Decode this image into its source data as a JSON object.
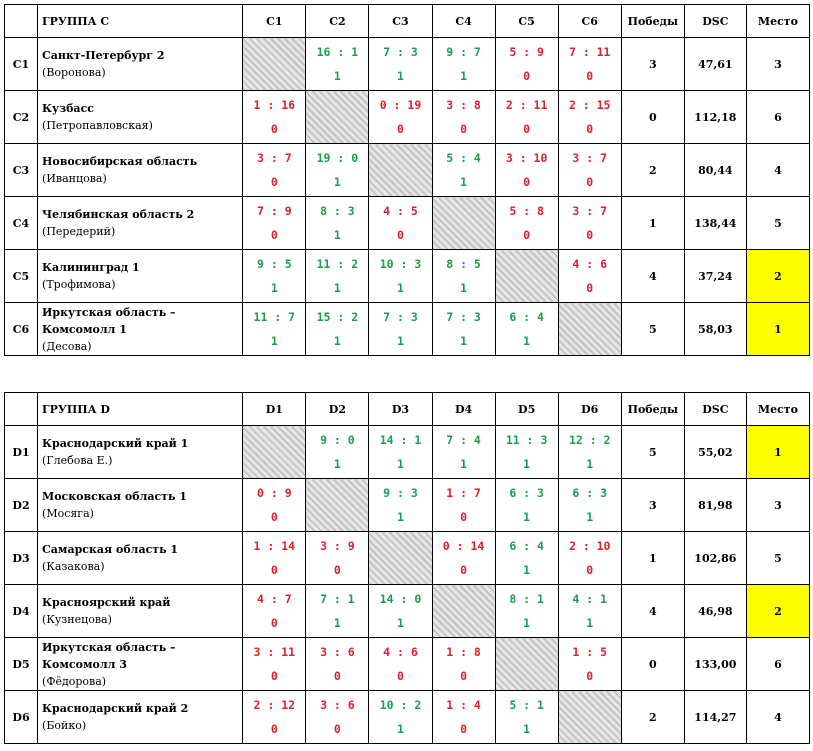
{
  "headers": {
    "wins": "Победы",
    "dsc": "DSC",
    "place": "Место"
  },
  "groups": [
    {
      "title": "ГРУППА C",
      "columns": [
        "C1",
        "C2",
        "C3",
        "C4",
        "C5",
        "C6"
      ],
      "teams": [
        {
          "code": "C1",
          "name": "Санкт-Петербург 2",
          "coach": "(Воронова)",
          "wins": "3",
          "dsc": "47,61",
          "place": "3",
          "highlight": false,
          "results": [
            null,
            {
              "s": "16 : 1",
              "p": "1"
            },
            {
              "s": "7 : 3",
              "p": "1"
            },
            {
              "s": "9 : 7",
              "p": "1"
            },
            {
              "s": "5 : 9",
              "p": "0"
            },
            {
              "s": "7 : 11",
              "p": "0"
            }
          ]
        },
        {
          "code": "C2",
          "name": "Кузбасс",
          "coach": "(Петропавловская)",
          "wins": "0",
          "dsc": "112,18",
          "place": "6",
          "highlight": false,
          "results": [
            {
              "s": "1 : 16",
              "p": "0"
            },
            null,
            {
              "s": "0 : 19",
              "p": "0"
            },
            {
              "s": "3 : 8",
              "p": "0"
            },
            {
              "s": "2 : 11",
              "p": "0"
            },
            {
              "s": "2 : 15",
              "p": "0"
            }
          ]
        },
        {
          "code": "C3",
          "name": "Новосибирская область",
          "coach": "(Иванцова)",
          "wins": "2",
          "dsc": "80,44",
          "place": "4",
          "highlight": false,
          "results": [
            {
              "s": "3 : 7",
              "p": "0"
            },
            {
              "s": "19 : 0",
              "p": "1"
            },
            null,
            {
              "s": "5 : 4",
              "p": "1"
            },
            {
              "s": "3 : 10",
              "p": "0"
            },
            {
              "s": "3 : 7",
              "p": "0"
            }
          ]
        },
        {
          "code": "C4",
          "name": "Челябинская область 2",
          "coach": "(Передерий)",
          "wins": "1",
          "dsc": "138,44",
          "place": "5",
          "highlight": false,
          "results": [
            {
              "s": "7 : 9",
              "p": "0"
            },
            {
              "s": "8 : 3",
              "p": "1"
            },
            {
              "s": "4 : 5",
              "p": "0"
            },
            null,
            {
              "s": "5 : 8",
              "p": "0"
            },
            {
              "s": "3 : 7",
              "p": "0"
            }
          ]
        },
        {
          "code": "C5",
          "name": "Калининград 1",
          "coach": "(Трофимова)",
          "wins": "4",
          "dsc": "37,24",
          "place": "2",
          "highlight": true,
          "results": [
            {
              "s": "9 : 5",
              "p": "1"
            },
            {
              "s": "11 : 2",
              "p": "1"
            },
            {
              "s": "10 : 3",
              "p": "1"
            },
            {
              "s": "8 : 5",
              "p": "1"
            },
            null,
            {
              "s": "4 : 6",
              "p": "0"
            }
          ]
        },
        {
          "code": "C6",
          "name": "Иркутская область –",
          "name2": "Комсомолл 1",
          "coach": "(Десова)",
          "wins": "5",
          "dsc": "58,03",
          "place": "1",
          "highlight": true,
          "results": [
            {
              "s": "11 : 7",
              "p": "1"
            },
            {
              "s": "15 : 2",
              "p": "1"
            },
            {
              "s": "7 : 3",
              "p": "1"
            },
            {
              "s": "7 : 3",
              "p": "1"
            },
            {
              "s": "6 : 4",
              "p": "1"
            },
            null
          ]
        }
      ]
    },
    {
      "title": "ГРУППА D",
      "columns": [
        "D1",
        "D2",
        "D3",
        "D4",
        "D5",
        "D6"
      ],
      "teams": [
        {
          "code": "D1",
          "name": "Краснодарский край 1",
          "coach": "(Глебова Е.)",
          "wins": "5",
          "dsc": "55,02",
          "place": "1",
          "highlight": true,
          "results": [
            null,
            {
              "s": "9 : 0",
              "p": "1"
            },
            {
              "s": "14 : 1",
              "p": "1"
            },
            {
              "s": "7 : 4",
              "p": "1"
            },
            {
              "s": "11 : 3",
              "p": "1"
            },
            {
              "s": "12 : 2",
              "p": "1"
            }
          ]
        },
        {
          "code": "D2",
          "name": "Московская область 1",
          "coach": "(Мосяга)",
          "wins": "3",
          "dsc": "81,98",
          "place": "3",
          "highlight": false,
          "results": [
            {
              "s": "0 : 9",
              "p": "0"
            },
            null,
            {
              "s": "9 : 3",
              "p": "1"
            },
            {
              "s": "1 : 7",
              "p": "0"
            },
            {
              "s": "6 : 3",
              "p": "1"
            },
            {
              "s": "6 : 3",
              "p": "1"
            }
          ]
        },
        {
          "code": "D3",
          "name": "Самарская область 1",
          "coach": "(Казакова)",
          "wins": "1",
          "dsc": "102,86",
          "place": "5",
          "highlight": false,
          "results": [
            {
              "s": "1 : 14",
              "p": "0"
            },
            {
              "s": "3 : 9",
              "p": "0"
            },
            null,
            {
              "s": "0 : 14",
              "p": "0"
            },
            {
              "s": "6 : 4",
              "p": "1"
            },
            {
              "s": "2 : 10",
              "p": "0"
            }
          ]
        },
        {
          "code": "D4",
          "name": "Красноярский край",
          "coach": "(Кузнецова)",
          "wins": "4",
          "dsc": "46,98",
          "place": "2",
          "highlight": true,
          "results": [
            {
              "s": "4 : 7",
              "p": "0"
            },
            {
              "s": "7 : 1",
              "p": "1"
            },
            {
              "s": "14 : 0",
              "p": "1"
            },
            null,
            {
              "s": "8 : 1",
              "p": "1"
            },
            {
              "s": "4 : 1",
              "p": "1"
            }
          ]
        },
        {
          "code": "D5",
          "name": "Иркутская область –",
          "name2": "Комсомолл 3",
          "coach": "(Фёдорова)",
          "wins": "0",
          "dsc": "133,00",
          "place": "6",
          "highlight": false,
          "results": [
            {
              "s": "3 : 11",
              "p": "0"
            },
            {
              "s": "3 : 6",
              "p": "0"
            },
            {
              "s": "4 : 6",
              "p": "0"
            },
            {
              "s": "1 : 8",
              "p": "0"
            },
            null,
            {
              "s": "1 : 5",
              "p": "0"
            }
          ]
        },
        {
          "code": "D6",
          "name": "Краснодарский край 2",
          "coach": "(Бойко)",
          "wins": "2",
          "dsc": "114,27",
          "place": "4",
          "highlight": false,
          "results": [
            {
              "s": "2 : 12",
              "p": "0"
            },
            {
              "s": "3 : 6",
              "p": "0"
            },
            {
              "s": "10 : 2",
              "p": "1"
            },
            {
              "s": "1 : 4",
              "p": "0"
            },
            {
              "s": "5 : 1",
              "p": "1"
            },
            null
          ]
        }
      ]
    }
  ],
  "colors": {
    "win": "#1aa04a",
    "loss": "#e0202a",
    "highlight": "#ffff00"
  }
}
